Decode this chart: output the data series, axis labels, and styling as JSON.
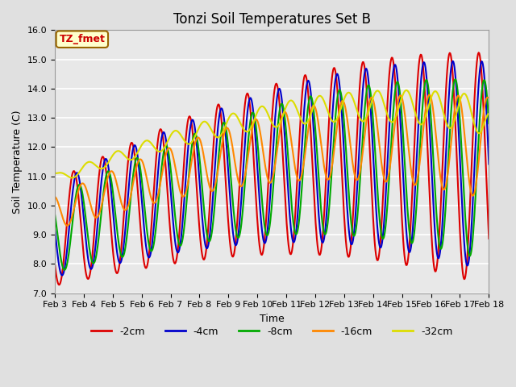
{
  "title": "Tonzi Soil Temperatures Set B",
  "xlabel": "Time",
  "ylabel": "Soil Temperature (C)",
  "ylim": [
    7.0,
    16.0
  ],
  "yticks": [
    7.0,
    8.0,
    9.0,
    10.0,
    11.0,
    12.0,
    13.0,
    14.0,
    15.0,
    16.0
  ],
  "x_labels": [
    "Feb 3",
    "Feb 4",
    "Feb 5",
    "Feb 6",
    "Feb 7",
    "Feb 8",
    "Feb 9",
    "Feb 10",
    "Feb 11",
    "Feb 12",
    "Feb 13",
    "Feb 14",
    "Feb 15",
    "Feb 16",
    "Feb 17",
    "Feb 18"
  ],
  "annotation_text": "TZ_fmet",
  "annotation_color": "#cc0000",
  "annotation_bg": "#ffffcc",
  "annotation_border": "#996600",
  "series": {
    "-2cm": {
      "color": "#dd0000",
      "lw": 1.5
    },
    "-4cm": {
      "color": "#0000cc",
      "lw": 1.5
    },
    "-8cm": {
      "color": "#00aa00",
      "lw": 1.5
    },
    "-16cm": {
      "color": "#ff8800",
      "lw": 1.5
    },
    "-32cm": {
      "color": "#dddd00",
      "lw": 1.5
    }
  },
  "bg_color": "#e0e0e0",
  "plot_bg": "#e8e8e8",
  "title_fontsize": 12,
  "axis_fontsize": 9,
  "tick_fontsize": 8,
  "legend_fontsize": 9
}
